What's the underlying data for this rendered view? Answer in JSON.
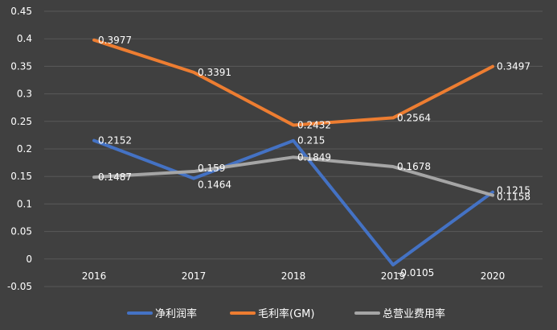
{
  "chart_data": {
    "type": "line",
    "title": "",
    "xlabel": "",
    "ylabel": "",
    "categories": [
      "2016",
      "2017",
      "2018",
      "2019",
      "2020"
    ],
    "ylim": [
      -0.05,
      0.45
    ],
    "yticks": [
      "-0.05",
      "0",
      "0.05",
      "0.1",
      "0.15",
      "0.2",
      "0.25",
      "0.3",
      "0.35",
      "0.4",
      "0.45"
    ],
    "grid": true,
    "legend_position": "bottom",
    "series": [
      {
        "name": "净利润率",
        "color": "#4472C4",
        "values": [
          0.2152,
          0.1464,
          0.215,
          -0.0105,
          0.1215
        ],
        "labels": [
          "0.2152",
          "0.1464",
          "0.215",
          "-0.0105",
          "0.1215"
        ]
      },
      {
        "name": "毛利率(GM)",
        "color": "#ED7D31",
        "values": [
          0.3977,
          0.3391,
          0.2432,
          0.2564,
          0.3497
        ],
        "labels": [
          "0.3977",
          "0.3391",
          "0.2432",
          "0.2564",
          "0.3497"
        ]
      },
      {
        "name": "总营业费用率",
        "color": "#A5A5A5",
        "values": [
          0.1487,
          0.159,
          0.1849,
          0.1678,
          0.1158
        ],
        "labels": [
          "0.1487",
          "0.159",
          "0.1849",
          "0.1678",
          "0.1158"
        ]
      }
    ],
    "grid_color": "#595959",
    "background": "#404040",
    "text_color": "#FFFFFF"
  }
}
